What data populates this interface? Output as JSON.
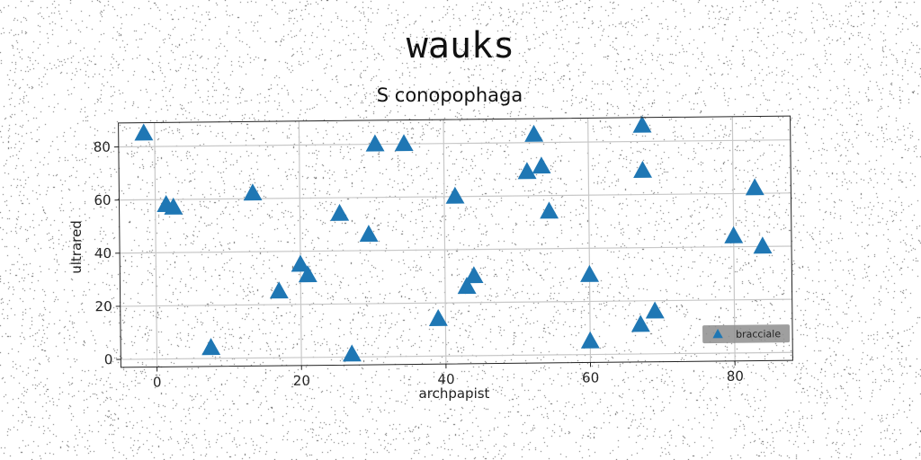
{
  "chart_data": {
    "type": "scatter",
    "title": "wauks",
    "subtitle": "S conopophaga",
    "xlabel": "archpapist",
    "ylabel": "ultrared",
    "xlim": [
      -5,
      88
    ],
    "ylim": [
      -3,
      89
    ],
    "xticks": [
      0,
      20,
      40,
      60,
      80
    ],
    "yticks": [
      0,
      20,
      40,
      60,
      80
    ],
    "grid": true,
    "legend_position": "bottom-right",
    "series": [
      {
        "name": "bracciale",
        "marker": "triangle",
        "color": "#1f77b4",
        "points": [
          {
            "x": -1.5,
            "y": 85
          },
          {
            "x": 1.5,
            "y": 58
          },
          {
            "x": 2.5,
            "y": 57
          },
          {
            "x": 7.5,
            "y": 4
          },
          {
            "x": 13.5,
            "y": 62
          },
          {
            "x": 17,
            "y": 25
          },
          {
            "x": 20,
            "y": 35
          },
          {
            "x": 21,
            "y": 31
          },
          {
            "x": 25.5,
            "y": 54
          },
          {
            "x": 27,
            "y": 1
          },
          {
            "x": 29.5,
            "y": 46
          },
          {
            "x": 30.5,
            "y": 80
          },
          {
            "x": 34.5,
            "y": 80
          },
          {
            "x": 39,
            "y": 14
          },
          {
            "x": 41.5,
            "y": 60
          },
          {
            "x": 43,
            "y": 26
          },
          {
            "x": 44,
            "y": 30
          },
          {
            "x": 51.5,
            "y": 69
          },
          {
            "x": 52.5,
            "y": 83
          },
          {
            "x": 53.5,
            "y": 71
          },
          {
            "x": 54.5,
            "y": 54
          },
          {
            "x": 60,
            "y": 30
          },
          {
            "x": 60,
            "y": 5
          },
          {
            "x": 67,
            "y": 11
          },
          {
            "x": 67.5,
            "y": 86
          },
          {
            "x": 67.5,
            "y": 69
          },
          {
            "x": 69,
            "y": 16
          },
          {
            "x": 80,
            "y": 44
          },
          {
            "x": 83,
            "y": 62
          },
          {
            "x": 84,
            "y": 40
          }
        ]
      }
    ]
  }
}
